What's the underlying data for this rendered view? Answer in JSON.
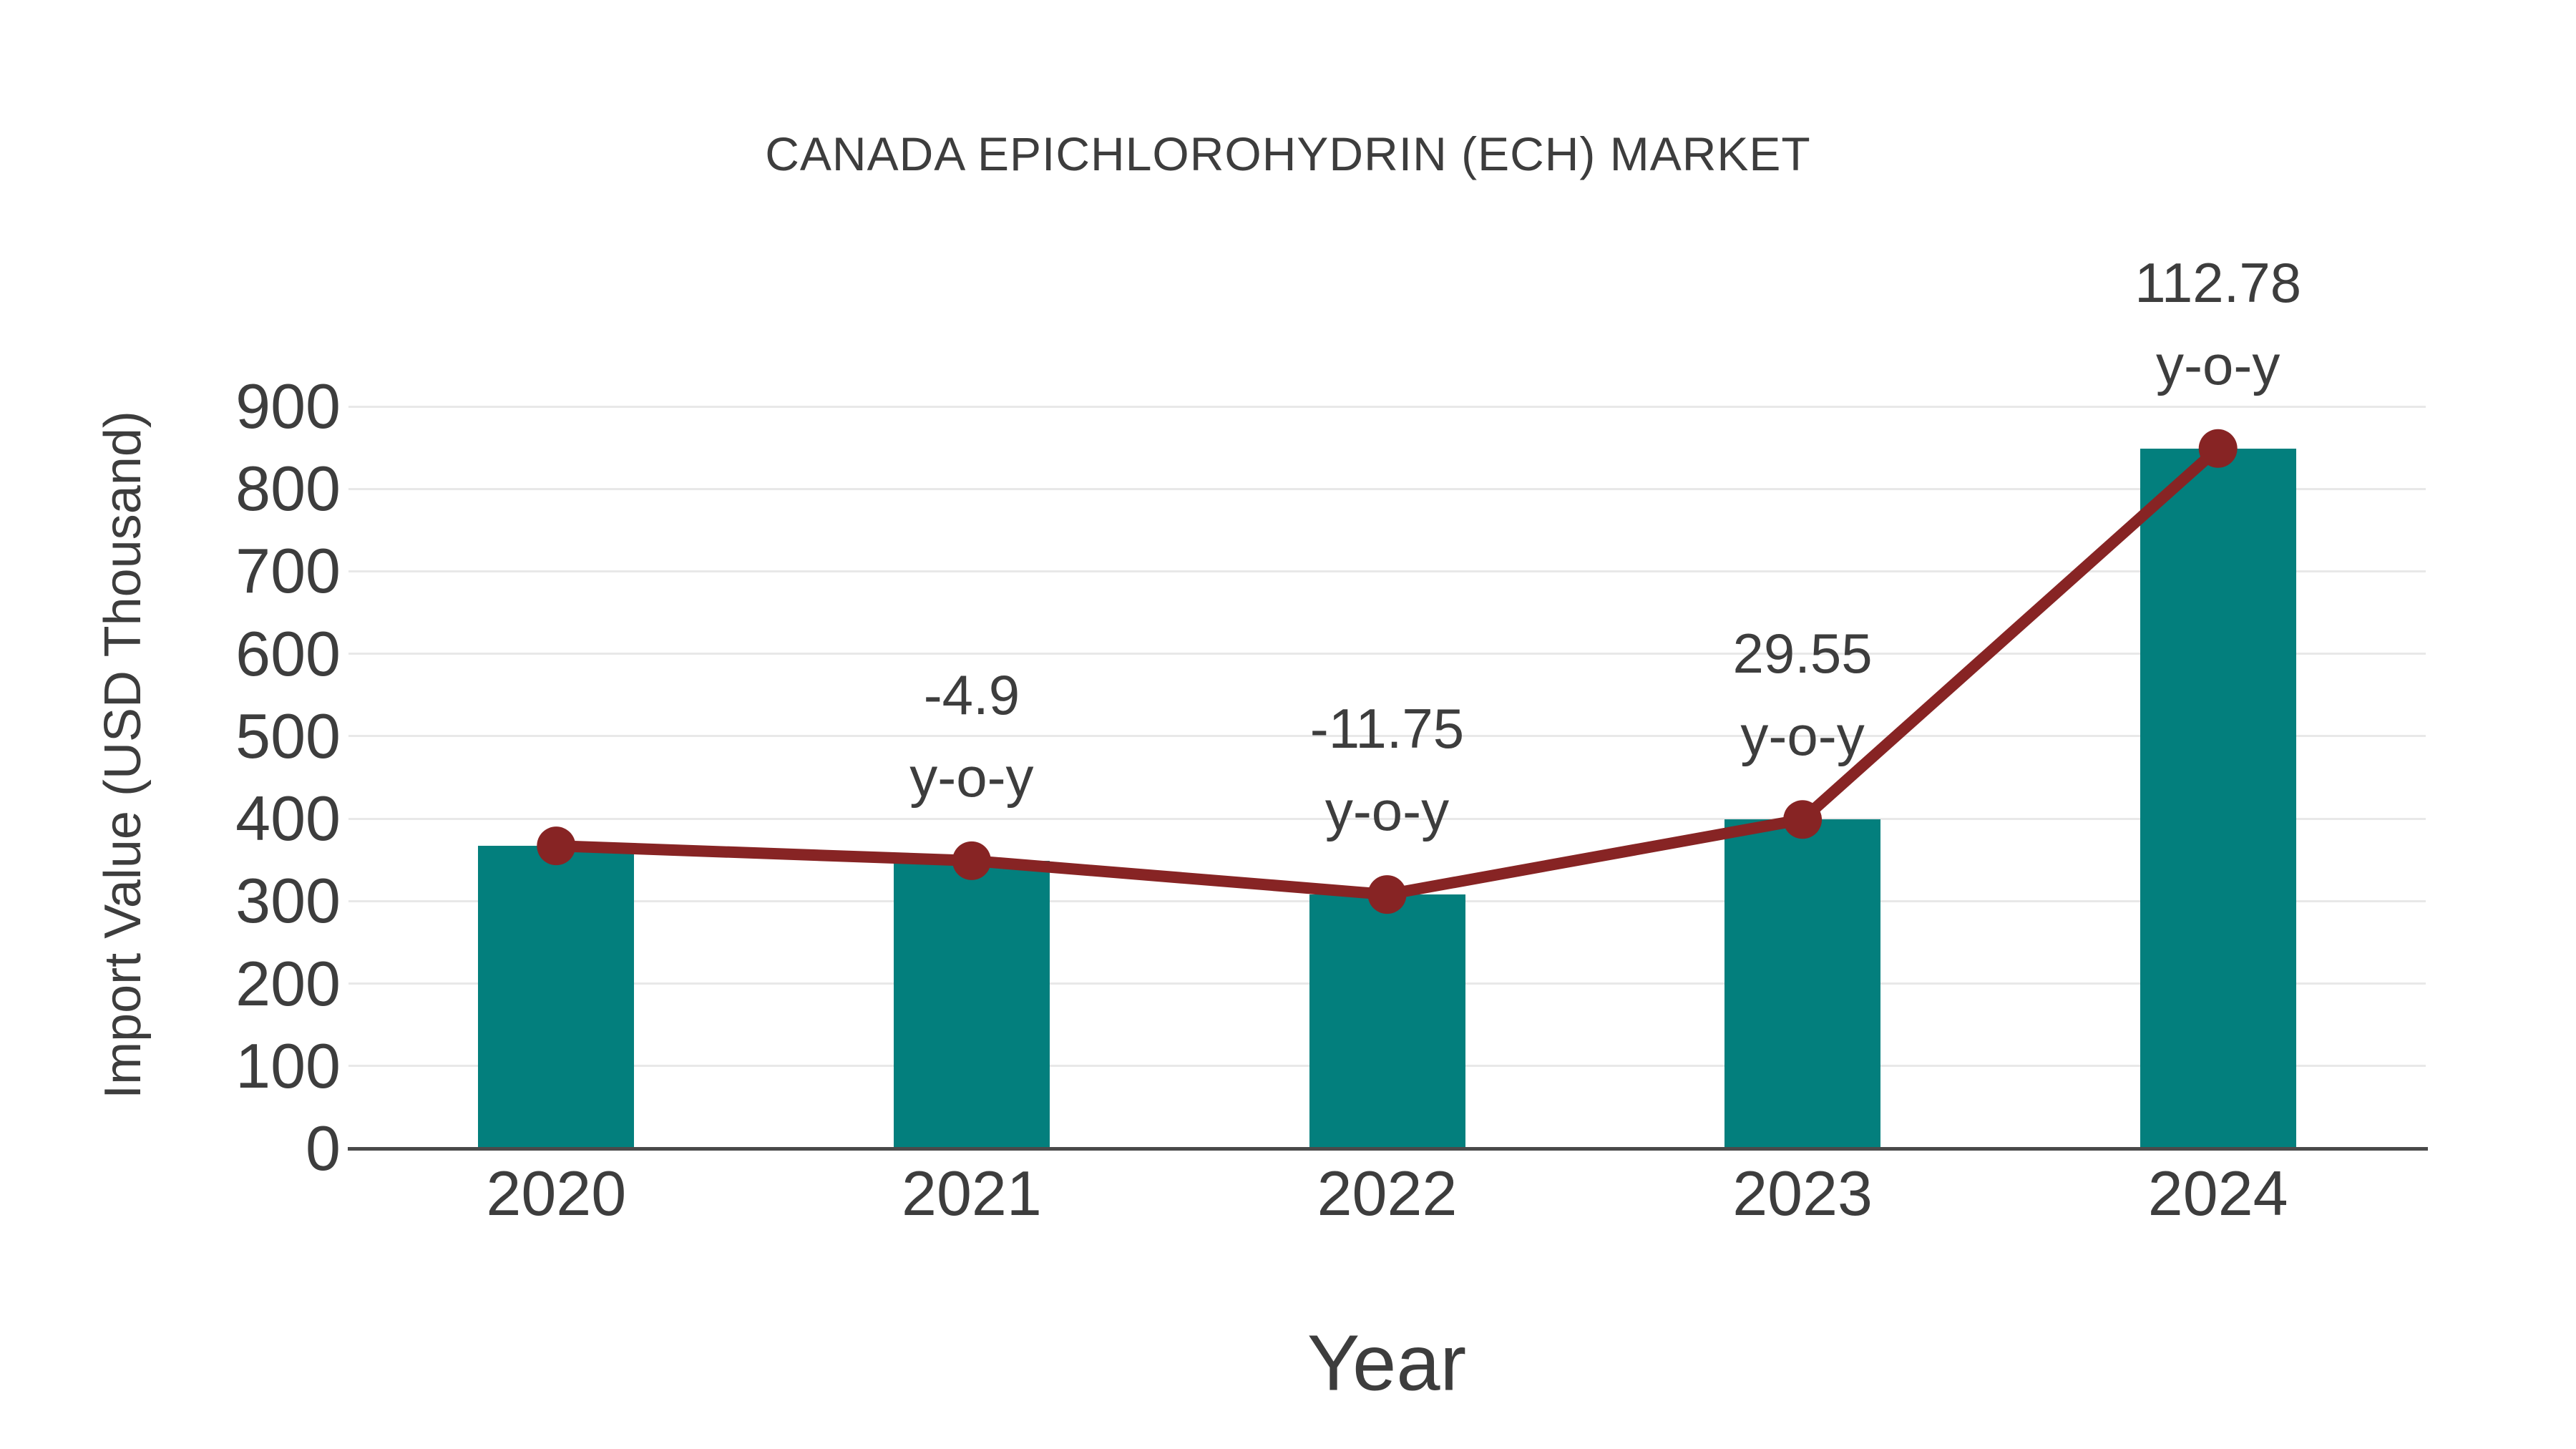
{
  "chart_data": {
    "type": "bar",
    "title": "CANADA EPICHLOROHYDRIN (ECH) MARKET",
    "xlabel": "Year",
    "ylabel": "Import Value (USD Thousand)",
    "categories": [
      "2020",
      "2021",
      "2022",
      "2023",
      "2024"
    ],
    "series": [
      {
        "name": "import-value-bars",
        "type": "bar",
        "color": "#037f7d",
        "values": [
          367,
          349,
          308,
          399,
          849
        ]
      },
      {
        "name": "import-value-trend",
        "type": "line",
        "color": "#872424",
        "values": [
          367,
          349,
          308,
          399,
          849
        ]
      }
    ],
    "y_ticks": [
      "0",
      "100",
      "200",
      "300",
      "400",
      "500",
      "600",
      "700",
      "800",
      "900"
    ],
    "ylim": [
      0,
      950
    ],
    "grid": true,
    "legend_position": "none",
    "annotations": [
      {
        "category": "2021",
        "label": "-4.9",
        "sublabel": "y-o-y"
      },
      {
        "category": "2022",
        "label": "-11.75",
        "sublabel": "y-o-y"
      },
      {
        "category": "2023",
        "label": "29.55",
        "sublabel": "y-o-y"
      },
      {
        "category": "2024",
        "label": "112.78",
        "sublabel": "y-o-y"
      }
    ]
  },
  "colors": {
    "bar": "#037f7d",
    "line": "#872424",
    "marker": "#872424",
    "text": "#3d3d3d",
    "grid": "#e8e8e8",
    "axis": "#4a4a4a",
    "background": "#ffffff"
  }
}
